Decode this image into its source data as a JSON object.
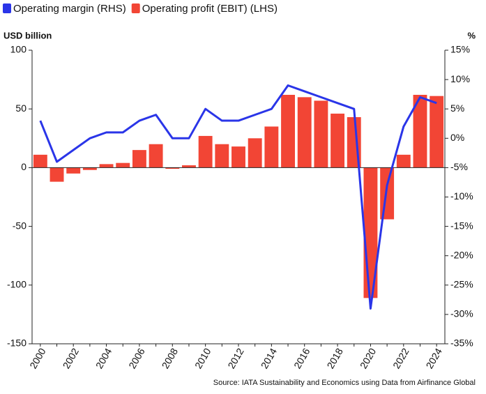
{
  "chart_data": {
    "type": "bar_line",
    "categories": [
      "2000",
      null,
      "2002",
      null,
      "2004",
      null,
      "2006",
      null,
      "2008",
      null,
      "2010",
      null,
      "2012",
      null,
      "2014",
      null,
      "2016",
      null,
      "2018",
      null,
      "2020",
      null,
      "2022",
      null,
      "2024"
    ],
    "series": [
      {
        "name": "Operating margin (RHS)",
        "color": "#2a35e8",
        "type": "line",
        "axis": "y2",
        "values": [
          3,
          -4,
          -2,
          0,
          1,
          1,
          3,
          4,
          0,
          0,
          5,
          3,
          3,
          4,
          5,
          9,
          8,
          7,
          6,
          5,
          -29,
          -8,
          2,
          7,
          6
        ]
      },
      {
        "name": "Operating profit (EBIT) (LHS)",
        "color": "#f24535",
        "type": "bar",
        "values": [
          11,
          -12,
          -5,
          -2,
          3,
          4,
          15,
          20,
          -1,
          2,
          27,
          20,
          18,
          25,
          35,
          62,
          60,
          57,
          46,
          43,
          -111,
          -44,
          11,
          62,
          61
        ]
      }
    ],
    "y_label": "USD billion",
    "y2_label": "%",
    "ylim": [
      -150,
      100
    ],
    "yticks": [
      -150,
      -100,
      -50,
      0,
      50,
      100
    ],
    "y2lim": [
      -35,
      15
    ],
    "y2ticks": [
      {
        "value": -35,
        "label": "-35%"
      },
      {
        "value": -30,
        "label": "-30%"
      },
      {
        "value": -25,
        "label": "-25%"
      },
      {
        "value": -20,
        "label": "-20%"
      },
      {
        "value": -15,
        "label": "-15%"
      },
      {
        "value": -10,
        "label": "-10%"
      },
      {
        "value": -5,
        "label": "-5%"
      },
      {
        "value": 0,
        "label": "0%"
      },
      {
        "value": 5,
        "label": "5%"
      },
      {
        "value": 10,
        "label": "10%"
      },
      {
        "value": 15,
        "label": "15%"
      }
    ],
    "source": "Source: IATA Sustainability and Economics using Data from Airfinance Global"
  }
}
